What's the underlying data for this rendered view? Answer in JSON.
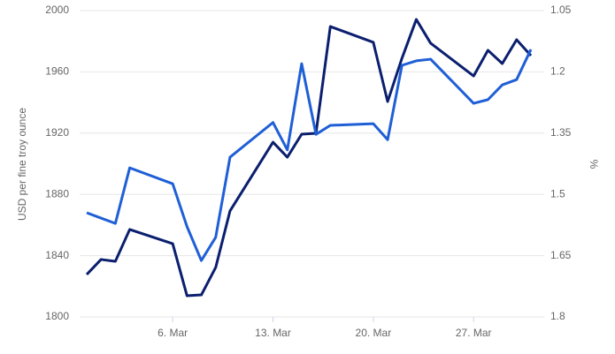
{
  "chart_data": {
    "type": "line",
    "y_label": "USD per fine troy ounce",
    "y2_label": "%",
    "x": [
      0,
      1,
      2,
      3,
      6,
      7,
      8,
      9,
      10,
      13,
      14,
      15,
      16,
      17,
      20,
      21,
      22,
      23,
      24,
      27,
      28,
      29,
      30,
      31
    ],
    "xlim": [
      0,
      31
    ],
    "xticks": [
      {
        "value": 6,
        "label": "6. Mar"
      },
      {
        "value": 13,
        "label": "13. Mar"
      },
      {
        "value": 20,
        "label": "20. Mar"
      },
      {
        "value": 27,
        "label": "27. Mar"
      }
    ],
    "ylim": [
      1800,
      2000
    ],
    "yticks": [
      1800,
      1840,
      1880,
      1920,
      1960,
      2000
    ],
    "y2lim": [
      1.8,
      1.05
    ],
    "y2ticks": [
      1.8,
      1.65,
      1.5,
      1.35,
      1.2,
      1.05
    ],
    "grid": true,
    "series": [
      {
        "color": "#0b1f6e",
        "values": [
          1827.7,
          1837.5,
          1836.3,
          1857.1,
          1847.8,
          1813.8,
          1814.4,
          1832.3,
          1869.2,
          1914.1,
          1904.3,
          1919.3,
          1919.9,
          1989.6,
          1979.3,
          1940.6,
          1968.9,
          1994.2,
          1978.7,
          1957.3,
          1974.1,
          1965.4,
          1981.0,
          1970.6
        ]
      },
      {
        "color": "#1f5fd6",
        "axis": "y2",
        "values": [
          1.545,
          1.558,
          1.571,
          1.435,
          1.474,
          1.579,
          1.662,
          1.605,
          1.409,
          1.324,
          1.391,
          1.18,
          1.353,
          1.331,
          1.327,
          1.366,
          1.184,
          1.173,
          1.169,
          1.277,
          1.268,
          1.232,
          1.219,
          1.145
        ]
      }
    ]
  }
}
